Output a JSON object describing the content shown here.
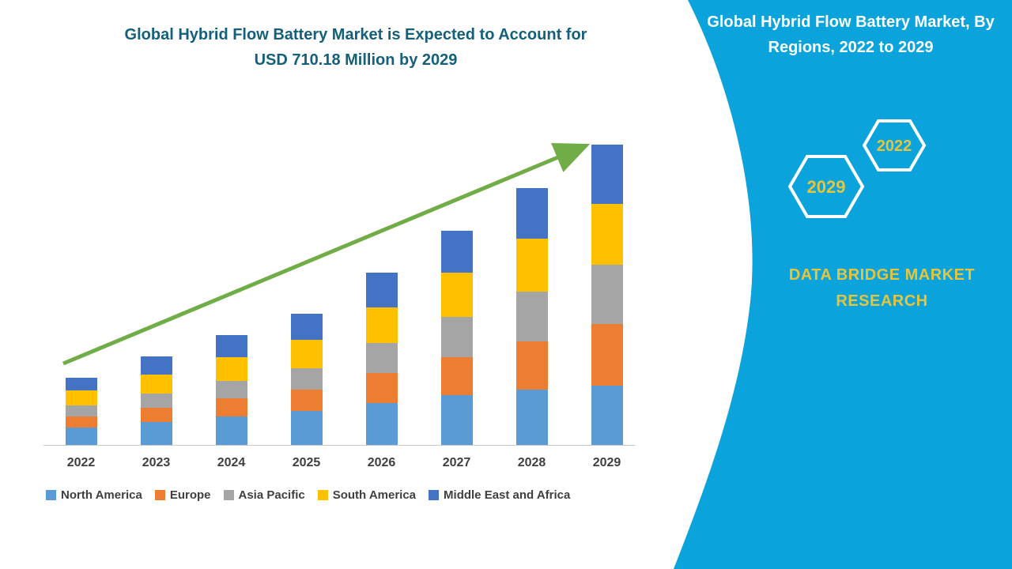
{
  "left_section": {
    "title_line1": "Global Hybrid Flow Battery Market is Expected to Account for",
    "title_line2": "USD 710.18 Million by 2029",
    "title_color": "#14607A"
  },
  "chart_data": {
    "type": "bar",
    "stacked": true,
    "title": "Global Hybrid Flow Battery Market is Expected to Account for USD 710.18 Million by 2029",
    "unit": "USD Million",
    "categories": [
      "2022",
      "2023",
      "2024",
      "2025",
      "2026",
      "2027",
      "2028",
      "2029"
    ],
    "series": [
      {
        "name": "North America",
        "color": "#5B9BD5",
        "values": [
          42,
          55,
          68,
          80,
          100,
          118,
          130,
          140
        ]
      },
      {
        "name": "Europe",
        "color": "#ED7D31",
        "values": [
          26,
          33,
          42,
          50,
          70,
          90,
          115,
          146
        ]
      },
      {
        "name": "Asia Pacific",
        "color": "#A5A5A5",
        "values": [
          25,
          33,
          42,
          52,
          72,
          95,
          118,
          140
        ]
      },
      {
        "name": "South America",
        "color": "#FFC000",
        "values": [
          36,
          46,
          56,
          66,
          84,
          104,
          125,
          144
        ]
      },
      {
        "name": "Middle East and Africa",
        "color": "#4472C4",
        "values": [
          29,
          42,
          52,
          62,
          82,
          100,
          120,
          140
        ]
      }
    ],
    "totals": [
      158,
      209,
      260,
      310,
      408,
      507,
      608,
      710
    ],
    "ylim": [
      0,
      750
    ],
    "grid": false,
    "legend_position": "bottom",
    "axis_color": "#c9c9c9",
    "label_color": "#3f3f3f",
    "annotations": [
      {
        "type": "trend-arrow",
        "direction": "up",
        "color": "#70AD47"
      }
    ]
  },
  "right_panel": {
    "panel_color": "#0AA3DC",
    "title": "Global Hybrid Flow Battery Market, By Regions, 2022 to 2029",
    "badges": [
      {
        "label": "2029"
      },
      {
        "label": "2022"
      }
    ],
    "badge_outline_color": "#ffffff",
    "accent_yellow": "#E6C53D",
    "brand_line1": "DATA BRIDGE MARKET",
    "brand_line2": "RESEARCH"
  }
}
